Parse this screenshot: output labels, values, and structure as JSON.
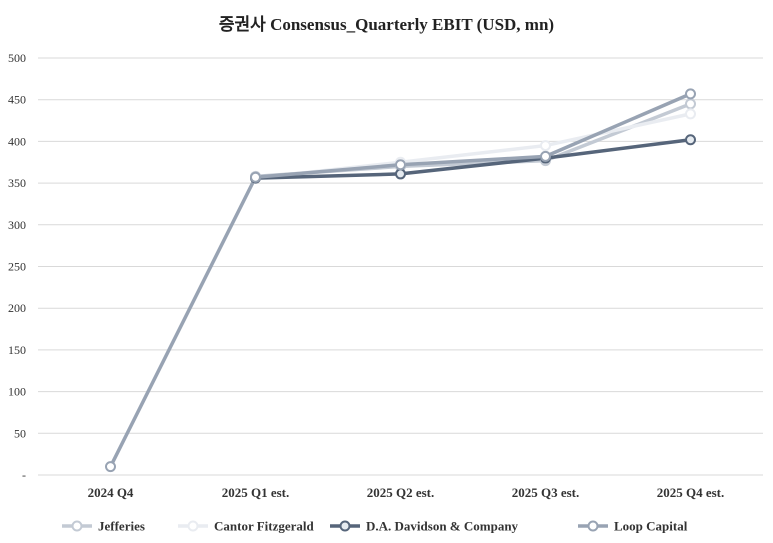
{
  "chart_data": {
    "type": "line",
    "title": "증권사 Consensus_Quarterly EBIT (USD, mn)",
    "xlabel": "",
    "ylabel": "",
    "categories": [
      "2024 Q4",
      "2025 Q1 est.",
      "2025 Q2 est.",
      "2025 Q3 est.",
      "2025 Q4 est."
    ],
    "y_ticks": [
      "-",
      "50",
      "100",
      "150",
      "200",
      "250",
      "300",
      "350",
      "400",
      "450",
      "500"
    ],
    "ylim": [
      0,
      500
    ],
    "grid": true,
    "legend_position": "bottom",
    "series": [
      {
        "name": "Jefferies",
        "values": [
          null,
          358,
          370,
          377,
          445
        ],
        "color": "#c3cad4",
        "marker_fill": "#ffffff"
      },
      {
        "name": "Cantor Fitzgerald",
        "values": [
          null,
          356,
          375,
          395,
          433
        ],
        "color": "#e9ecf1",
        "marker_fill": "#ffffff"
      },
      {
        "name": "D.A. Davidson & Company",
        "values": [
          null,
          356,
          361,
          380,
          402
        ],
        "color": "#56657a",
        "marker_fill": "#e6ebf0"
      },
      {
        "name": "Loop Capital",
        "values": [
          10,
          357,
          372,
          382,
          457
        ],
        "color": "#98a3b3",
        "marker_fill": "#ffffff"
      }
    ]
  }
}
